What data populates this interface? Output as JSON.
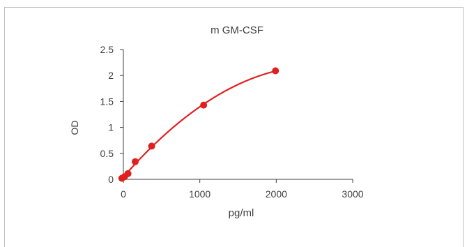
{
  "chart_data": {
    "type": "scatter",
    "title": "m GM-CSF",
    "xlabel": "pg/ml",
    "ylabel": "OD",
    "xlim": [
      0,
      3000
    ],
    "ylim": [
      0,
      2.5
    ],
    "xticks": [
      "0",
      "1000",
      "2000",
      "3000"
    ],
    "yticks": [
      "0",
      "0.5",
      "1",
      "1.5",
      "2",
      "2.5"
    ],
    "grid": false,
    "series": [
      {
        "color": "#e0201f",
        "points": [
          {
            "x": -20,
            "y": 0.02
          },
          {
            "x": 15,
            "y": 0.05
          },
          {
            "x": 60,
            "y": 0.11
          },
          {
            "x": 155,
            "y": 0.34
          },
          {
            "x": 370,
            "y": 0.64
          },
          {
            "x": 1050,
            "y": 1.43
          },
          {
            "x": 1990,
            "y": 2.09
          }
        ],
        "fit": "quadratic"
      }
    ]
  }
}
